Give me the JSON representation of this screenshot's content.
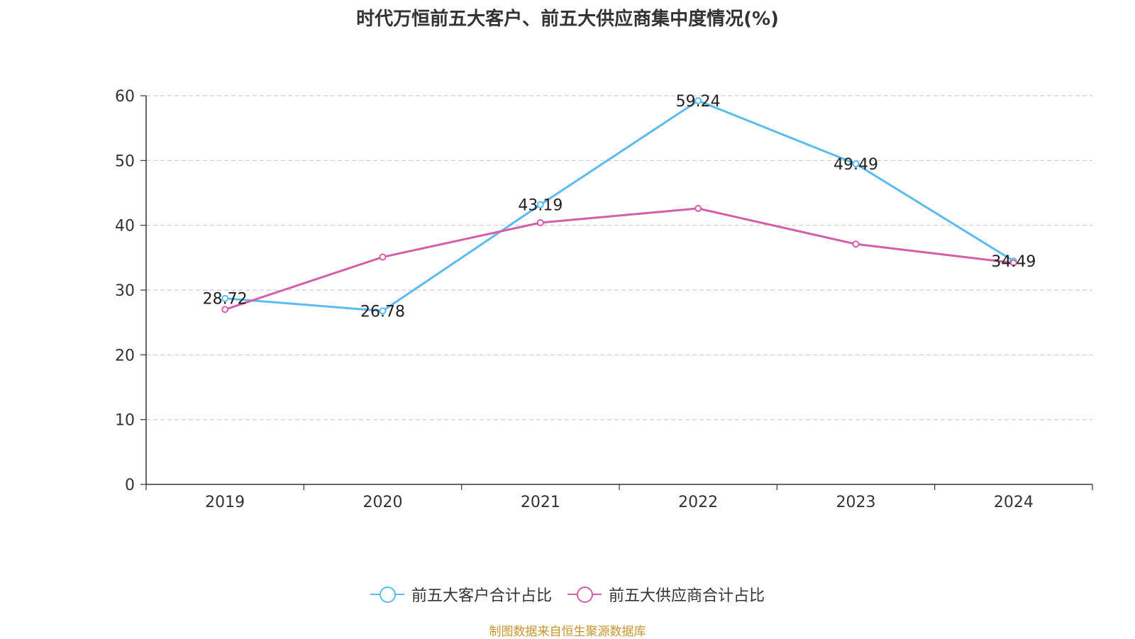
{
  "chart_data": {
    "type": "line",
    "title": "时代万恒前五大客户、前五大供应商集中度情况(%)",
    "categories": [
      "2019",
      "2020",
      "2021",
      "2022",
      "2023",
      "2024"
    ],
    "ylim": [
      0,
      60
    ],
    "yticks": [
      "0",
      "10",
      "20",
      "30",
      "40",
      "50",
      "60"
    ],
    "grid": true,
    "legend_position": "bottom",
    "series": [
      {
        "name": "前五大客户合计占比",
        "color": "#5bbcef",
        "values": [
          28.72,
          26.78,
          43.19,
          59.24,
          49.49,
          34.49
        ],
        "labels": [
          "28.72",
          "26.78",
          "43.19",
          "59.24",
          "49.49",
          "34.49"
        ]
      },
      {
        "name": "前五大供应商合计占比",
        "color": "#d45fa8",
        "values": [
          27.0,
          35.1,
          40.4,
          42.6,
          37.1,
          34.2
        ],
        "labels": []
      }
    ]
  },
  "footer": {
    "source": "制图数据来自恒生聚源数据库"
  }
}
